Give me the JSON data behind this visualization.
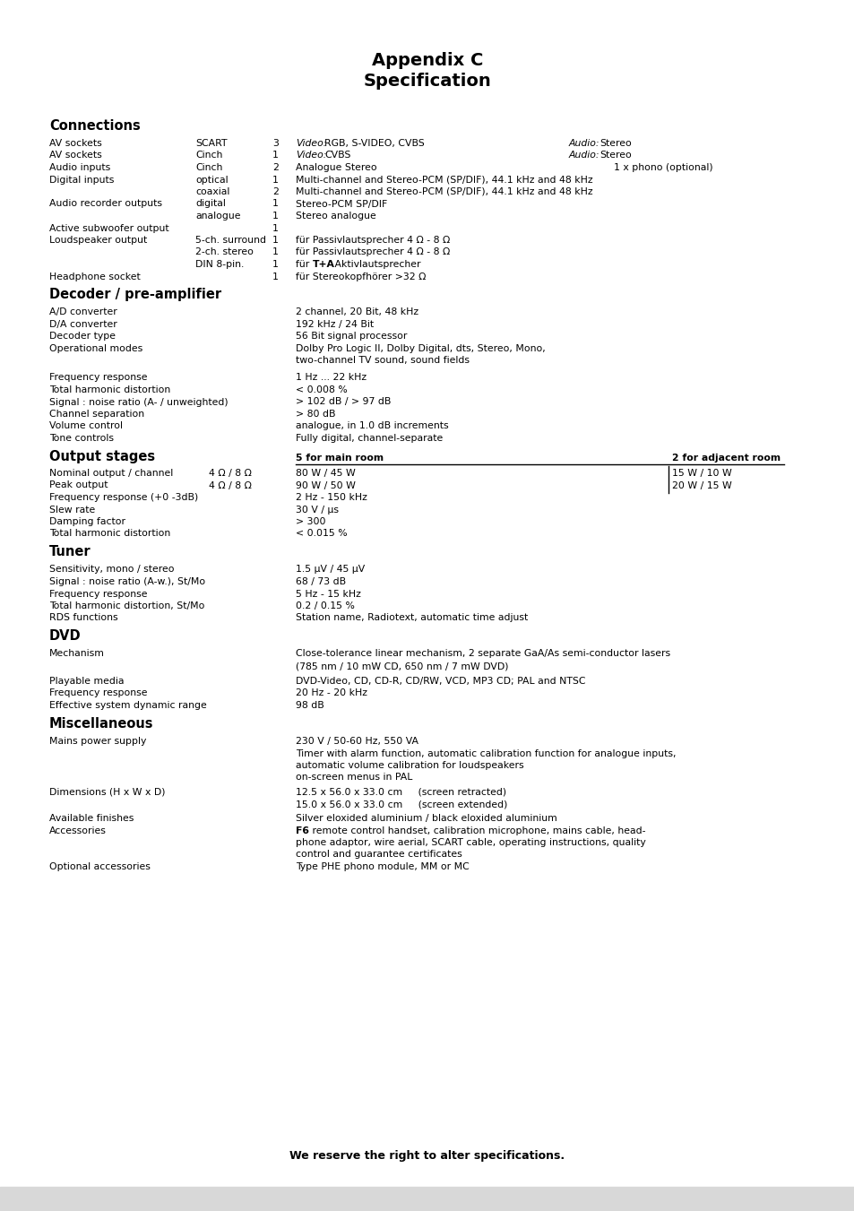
{
  "title_line1": "Appendix C",
  "title_line2": "Specification",
  "bg_color": "#ffffff",
  "footer_bg": "#d8d8d8",
  "bottom_note": "We reserve the right to alter specifications."
}
